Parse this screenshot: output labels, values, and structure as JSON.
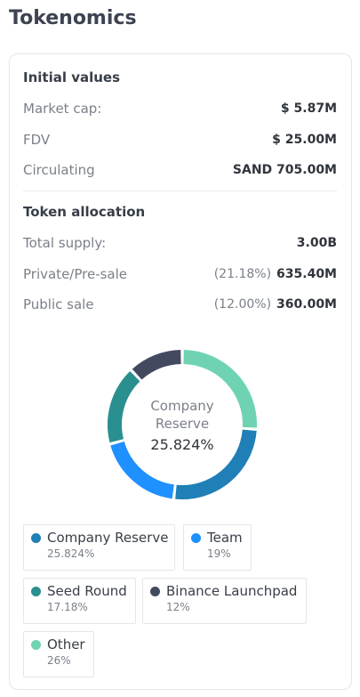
{
  "page": {
    "title": "Tokenomics"
  },
  "initial_values": {
    "title": "Initial values",
    "rows": [
      {
        "label": "Market cap:",
        "value": "$ 5.87M"
      },
      {
        "label": "FDV",
        "value": "$ 25.00M"
      },
      {
        "label": "Circulating",
        "value": "SAND 705.00M"
      }
    ]
  },
  "token_allocation": {
    "title": "Token allocation",
    "rows": [
      {
        "label": "Total supply:",
        "pct": "",
        "value": "3.00B"
      },
      {
        "label": "Private/Pre-sale",
        "pct": "(21.18%)",
        "value": "635.40M"
      },
      {
        "label": "Public sale",
        "pct": "(12.00%)",
        "value": "360.00M"
      }
    ]
  },
  "donut": {
    "center_label": "Company Reserve",
    "center_value": "25.824%"
  },
  "chart_data": {
    "type": "pie",
    "slices": [
      {
        "name": "Other",
        "value": 26,
        "color": "#6fd3b3"
      },
      {
        "name": "Company Reserve",
        "value": 25.824,
        "color": "#1f7fb6"
      },
      {
        "name": "Team",
        "value": 19,
        "color": "#1e90ff"
      },
      {
        "name": "Seed Round",
        "value": 17.18,
        "color": "#2a8f8f"
      },
      {
        "name": "Binance Launchpad",
        "value": 12,
        "color": "#434a60"
      }
    ]
  },
  "legend": [
    {
      "name": "Company Reserve",
      "value": "25.824%",
      "color": "#1f7fb6"
    },
    {
      "name": "Team",
      "value": "19%",
      "color": "#1e90ff"
    },
    {
      "name": "Seed Round",
      "value": "17.18%",
      "color": "#2a8f8f"
    },
    {
      "name": "Binance Launchpad",
      "value": "12%",
      "color": "#434a60"
    },
    {
      "name": "Other",
      "value": "26%",
      "color": "#6fd3b3"
    }
  ]
}
